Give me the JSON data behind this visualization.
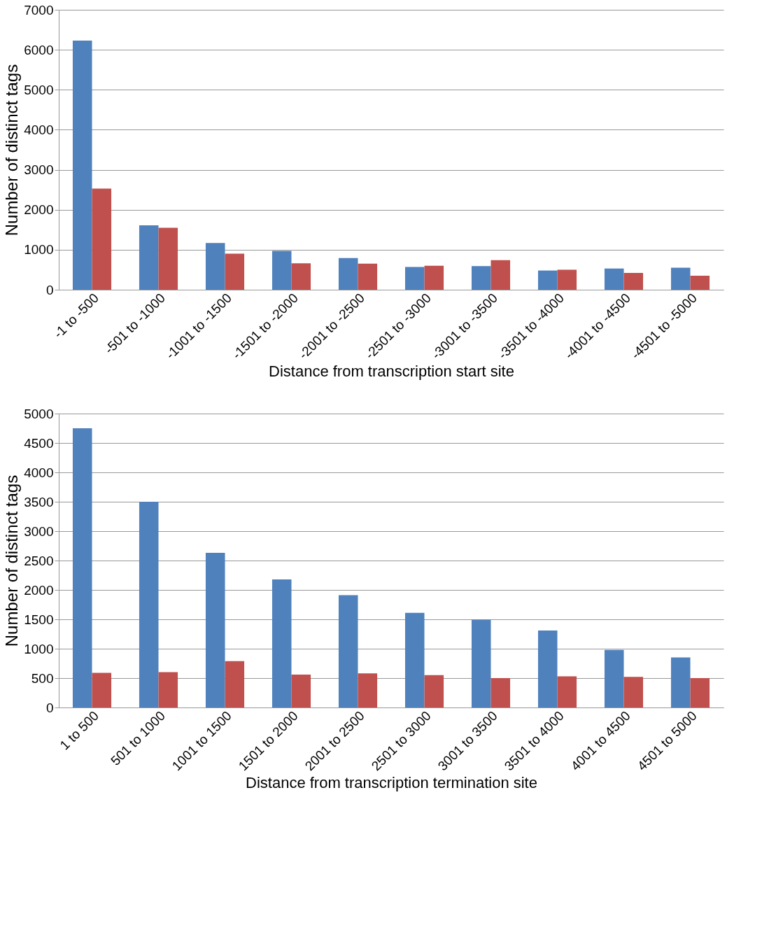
{
  "chart_data": [
    {
      "type": "bar",
      "xlabel": "Distance from transcription start site",
      "ylabel": "Number of distinct tags",
      "categories": [
        "-1 to -500",
        "-501 to -1000",
        "-1001 to -1500",
        "-1501 to -2000",
        "-2001 to -2500",
        "-2501 to -3000",
        "-3001 to -3500",
        "-3501 to -4000",
        "-4001 to -4500",
        "-4501 to -5000"
      ],
      "series": [
        {
          "color": "#4f81bd",
          "values": [
            6230,
            1610,
            1170,
            970,
            790,
            570,
            590,
            480,
            530,
            550
          ]
        },
        {
          "color": "#c0504d",
          "values": [
            2530,
            1550,
            900,
            660,
            650,
            600,
            740,
            500,
            420,
            350
          ]
        }
      ],
      "ylim": [
        0,
        7000
      ],
      "yticks": [
        0,
        1000,
        2000,
        3000,
        4000,
        5000,
        6000,
        7000
      ],
      "grid": "y",
      "legend": false
    },
    {
      "type": "bar",
      "xlabel": "Distance from transcription termination site",
      "ylabel": "Number of distinct tags",
      "categories": [
        "1 to 500",
        "501 to 1000",
        "1001 to 1500",
        "1501 to 2000",
        "2001 to 2500",
        "2501 to 3000",
        "3001 to 3500",
        "3501 to 4000",
        "4001 to 4500",
        "4501 to 5000"
      ],
      "series": [
        {
          "color": "#4f81bd",
          "values": [
            4750,
            3500,
            2630,
            2180,
            1910,
            1610,
            1490,
            1310,
            980,
            850
          ]
        },
        {
          "color": "#c0504d",
          "values": [
            590,
            600,
            790,
            560,
            580,
            550,
            500,
            530,
            520,
            500
          ]
        }
      ],
      "ylim": [
        0,
        5000
      ],
      "yticks": [
        0,
        500,
        1000,
        1500,
        2000,
        2500,
        3000,
        3500,
        4000,
        4500,
        5000
      ],
      "grid": "y",
      "legend": false
    }
  ]
}
